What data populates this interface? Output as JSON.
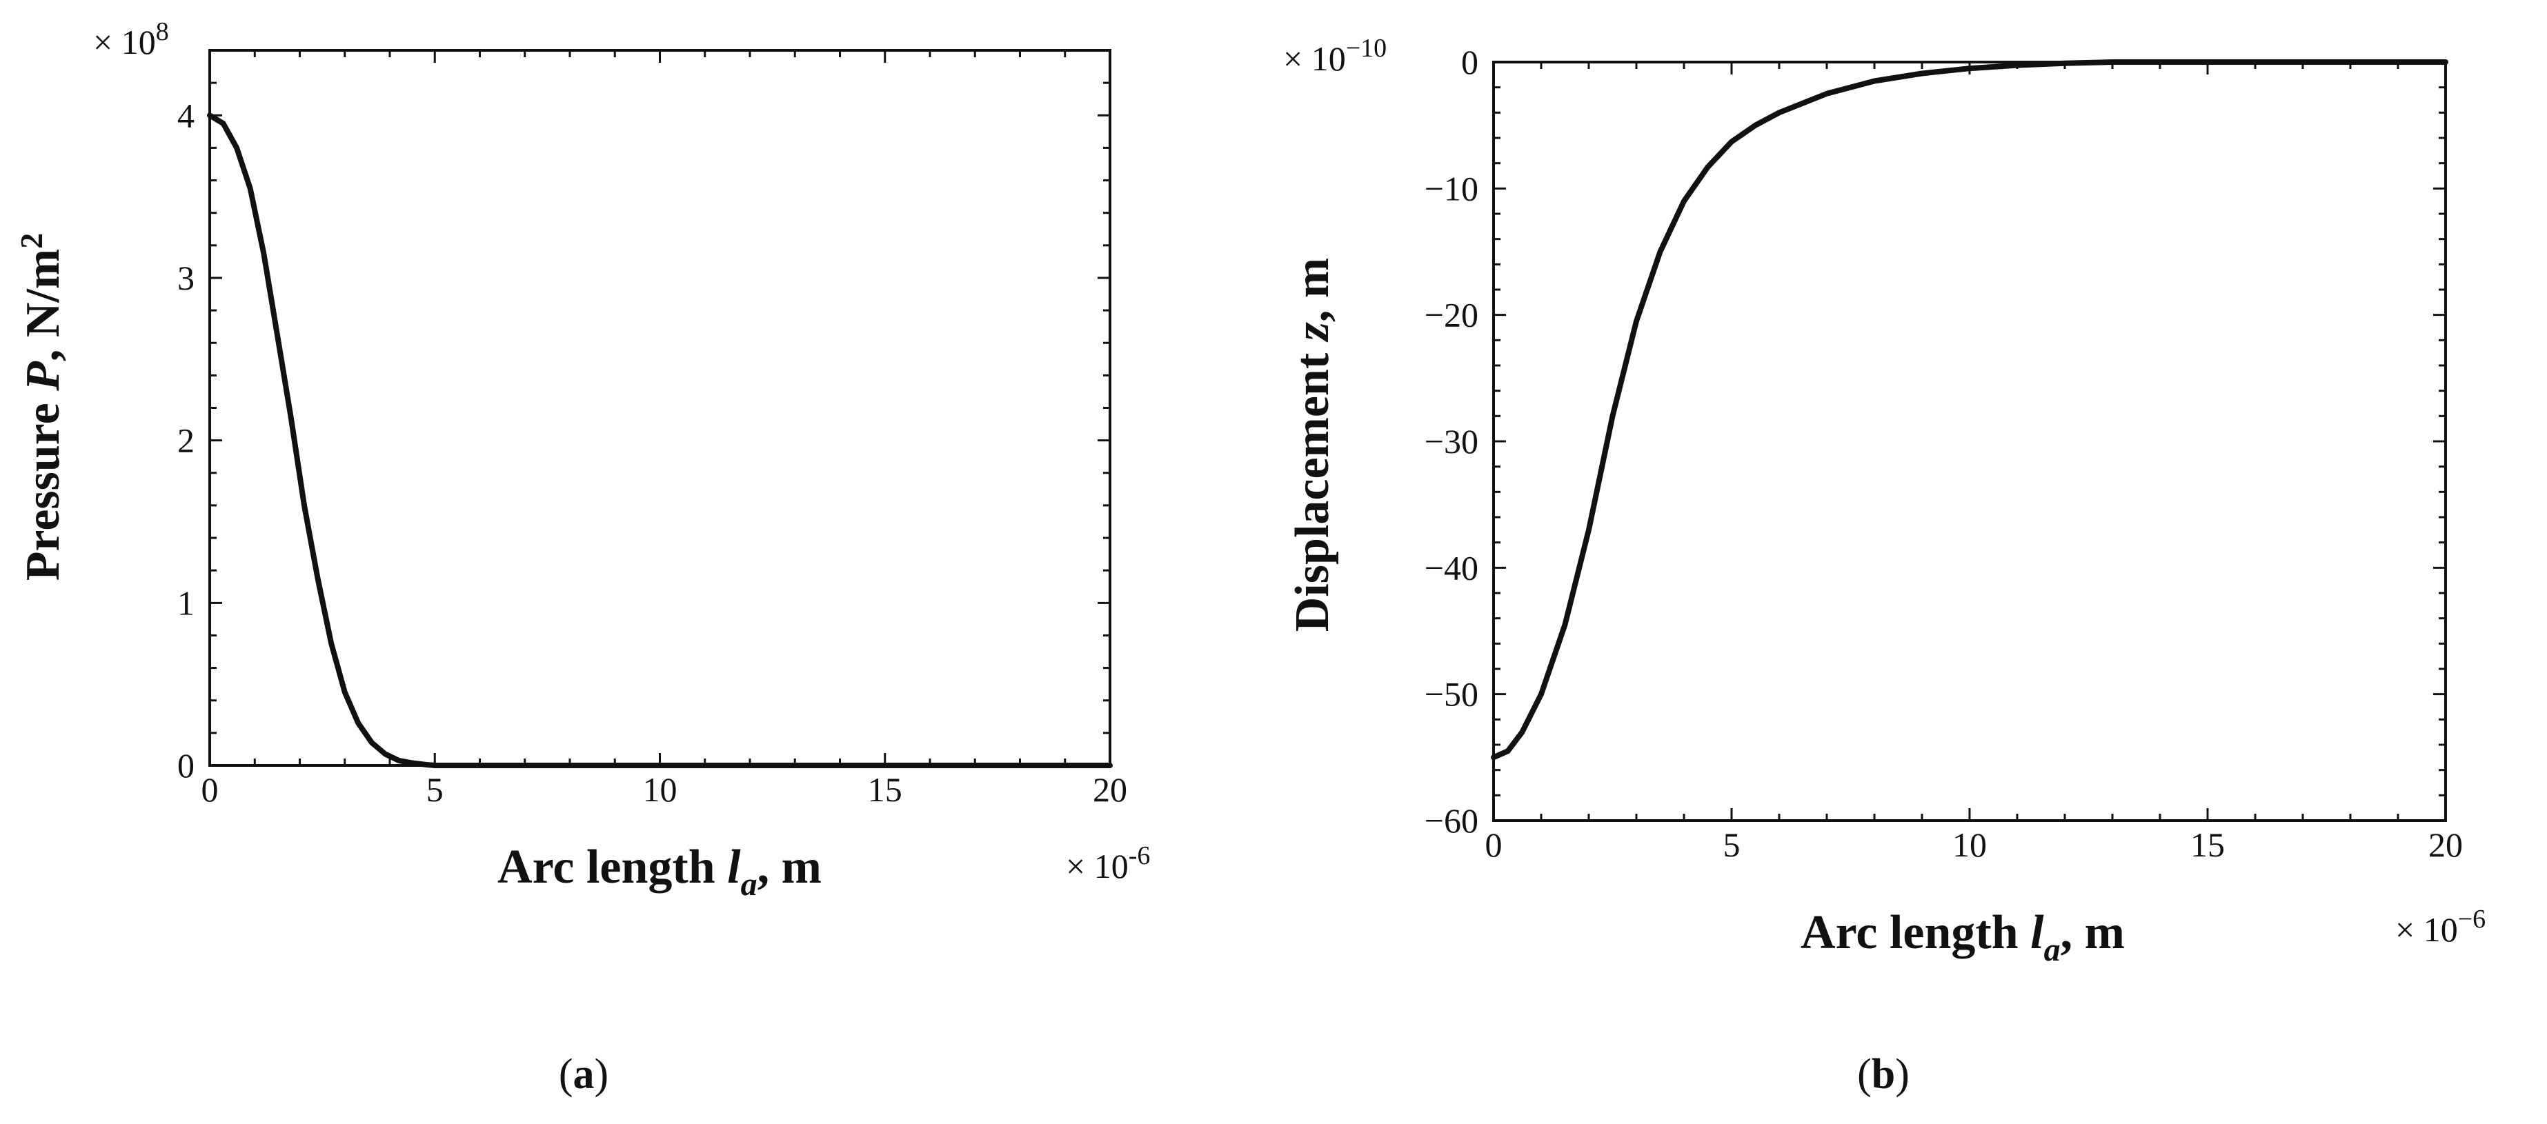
{
  "chart_data": [
    {
      "type": "line",
      "panel_label": {
        "open": "(",
        "letter": "a",
        "close": ")"
      },
      "xlabel": {
        "main": "Arc length ",
        "var": "l",
        "sub": "a",
        "unit": ", m"
      },
      "ylabel": {
        "main": "Pressure ",
        "var": "P",
        "unit": ", N/m",
        "sup": "2"
      },
      "x_multiplier": {
        "base": "× 10",
        "exp": "-6"
      },
      "y_multiplier": {
        "base": "× 10",
        "exp": "8"
      },
      "xlim": [
        0,
        20
      ],
      "ylim": [
        0,
        4.4
      ],
      "xticks": [
        "0",
        "5",
        "10",
        "15",
        "20"
      ],
      "yticks": [
        "0",
        "1",
        "2",
        "3",
        "4"
      ],
      "grid": false,
      "series": [
        {
          "x": [
            0,
            0.3,
            0.6,
            0.9,
            1.2,
            1.5,
            1.8,
            2.1,
            2.4,
            2.7,
            3.0,
            3.3,
            3.6,
            3.9,
            4.2,
            4.5,
            4.8,
            5.0,
            6,
            8,
            10,
            12,
            15,
            20
          ],
          "y": [
            4.0,
            3.95,
            3.8,
            3.55,
            3.15,
            2.65,
            2.15,
            1.6,
            1.15,
            0.75,
            0.45,
            0.26,
            0.14,
            0.07,
            0.03,
            0.015,
            0.005,
            0,
            0,
            0,
            0,
            0,
            0,
            0
          ]
        }
      ]
    },
    {
      "type": "line",
      "panel_label": {
        "open": "(",
        "letter": "b",
        "close": ")"
      },
      "xlabel": {
        "main": "Arc length ",
        "var": "l",
        "sub": "a",
        "unit": ", m"
      },
      "ylabel": {
        "main": "Displacement ",
        "var": "z",
        "unit": ", m"
      },
      "x_multiplier": {
        "base": "× 10",
        "exp": "−6"
      },
      "y_multiplier": {
        "base": "× 10",
        "exp": "−10"
      },
      "xlim": [
        0,
        20
      ],
      "ylim": [
        -60,
        0
      ],
      "xticks": [
        "0",
        "5",
        "10",
        "15",
        "20"
      ],
      "yticks": [
        "0",
        "−10",
        "−20",
        "−30",
        "−40",
        "−50",
        "−60"
      ],
      "grid": false,
      "series": [
        {
          "x": [
            0,
            0.3,
            0.6,
            1.0,
            1.5,
            2.0,
            2.5,
            3.0,
            3.5,
            4.0,
            4.5,
            5.0,
            5.5,
            6.0,
            7.0,
            8.0,
            9.0,
            10.0,
            11.0,
            12.0,
            13.0,
            15.0,
            17.5,
            20.0
          ],
          "y": [
            -55,
            -54.5,
            -53,
            -50,
            -44.5,
            -37,
            -28,
            -20.5,
            -15,
            -11,
            -8.3,
            -6.3,
            -5,
            -4,
            -2.5,
            -1.5,
            -0.9,
            -0.5,
            -0.25,
            -0.1,
            0,
            0,
            0,
            0
          ]
        }
      ]
    }
  ]
}
